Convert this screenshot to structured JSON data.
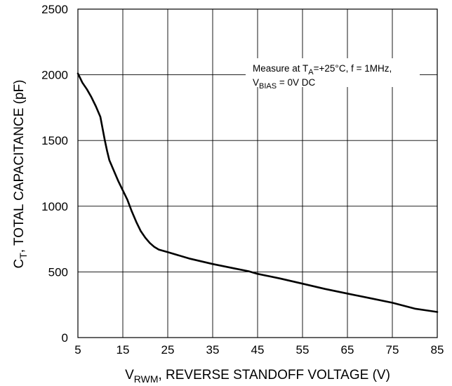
{
  "chart_data": {
    "type": "line",
    "title": "",
    "xlabel": {
      "prefix": "V",
      "subscript": "RWM",
      "suffix": ", REVERSE STANDOFF VOLTAGE (V)"
    },
    "ylabel": {
      "prefix": "C",
      "subscript": "T",
      "suffix": ", TOTAL CAPACITANCE (pF)"
    },
    "xlim": [
      5,
      85
    ],
    "ylim": [
      0,
      2500
    ],
    "xticks": [
      "5",
      "15",
      "25",
      "35",
      "45",
      "55",
      "65",
      "75",
      "85"
    ],
    "yticks": [
      "0",
      "500",
      "1000",
      "1500",
      "2000",
      "2500"
    ],
    "grid": true,
    "annotation": {
      "line1_prefix": "Measure at T",
      "line1_sub": "A",
      "line1_suffix": "=+25°C, f = 1MHz,",
      "line2_prefix": "V",
      "line2_sub": "BIAS",
      "line2_suffix": " = 0V DC"
    },
    "series": [
      {
        "x": [
          5,
          6,
          7,
          8,
          9,
          10,
          11,
          11.5,
          12,
          13,
          14,
          15,
          16,
          17,
          18,
          19,
          20,
          21,
          22,
          23,
          25,
          30,
          35,
          40,
          43,
          45,
          50,
          55,
          60,
          65,
          70,
          75,
          80,
          83,
          85
        ],
        "y": [
          2010,
          1940,
          1890,
          1830,
          1760,
          1680,
          1500,
          1420,
          1350,
          1270,
          1190,
          1120,
          1050,
          960,
          880,
          810,
          760,
          720,
          690,
          670,
          650,
          600,
          560,
          525,
          505,
          485,
          450,
          410,
          370,
          335,
          300,
          265,
          220,
          205,
          195
        ]
      }
    ]
  }
}
